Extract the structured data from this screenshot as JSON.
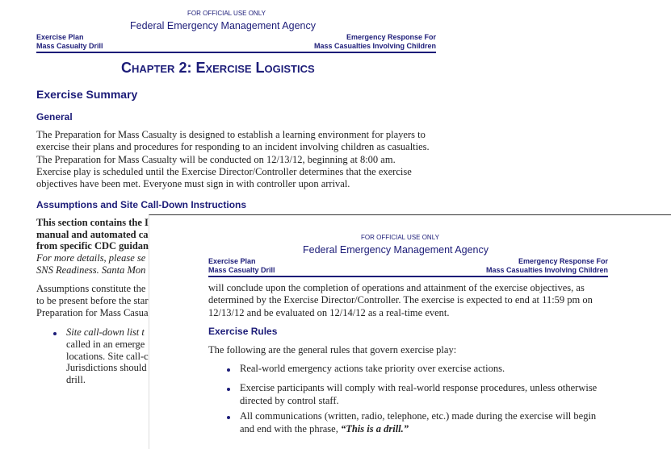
{
  "page1": {
    "official": "FOR OFFICIAL USE ONLY",
    "agency": "Federal Emergency Management Agency",
    "header_left": [
      "Exercise Plan",
      "Mass Casualty Drill"
    ],
    "header_right": [
      "Emergency Response For",
      "Mass Casualties Involving Children"
    ],
    "chapter_title": "Chapter 2: Exercise Logistics",
    "section_title": "Exercise Summary",
    "general_heading": "General",
    "general_lines": [
      "The Preparation for Mass Casualty is designed to establish a learning environment for players to",
      "exercise their plans and procedures for responding to an incident involving children as casualties.",
      "The Preparation for Mass Casualty will be conducted on 12/13/12, beginning at 8:00 am.",
      "Exercise play is scheduled until the Exercise Director/Controller determines that the exercise",
      "objectives have been met. Everyone must sign in with controller upon arrival."
    ],
    "assumptions_heading": "Assumptions and Site Call-Down Instructions",
    "bold_lines": [
      "This section contains the I",
      "manual and automated ca",
      "from specific CDC guidan"
    ],
    "italic_lines": [
      "For more details, please se",
      "SNS Readiness.  Santa Mon"
    ],
    "para_lines": [
      "Assumptions constitute the",
      "to be present before the star",
      "Preparation for Mass Casua"
    ],
    "bullet_lines": [
      "Site call-down list t",
      "called in an emerge",
      "locations. Site call-c",
      "Jurisdictions should",
      "drill."
    ]
  },
  "page2": {
    "official": "FOR OFFICIAL USE ONLY",
    "agency": "Federal Emergency Management Agency",
    "header_left": [
      "Exercise Plan",
      "Mass Casualty Drill"
    ],
    "header_right": [
      "Emergency Response For",
      "Mass Casualties Involving Children"
    ],
    "intro_lines": [
      "will conclude upon the completion of operations and attainment of the exercise objectives, as",
      "determined by the Exercise Director/Controller. The exercise is expected to end at 11:59 pm on",
      "12/13/12 and be evaluated on 12/14/12 as a real-time event."
    ],
    "rules_heading": "Exercise Rules",
    "rules_intro": "The following are the general rules that govern exercise play:",
    "rules": [
      {
        "lines": [
          "Real-world emergency actions take priority over exercise actions."
        ]
      },
      {
        "lines": [
          "Exercise participants will comply with real-world response procedures, unless otherwise",
          "directed by control staff."
        ]
      },
      {
        "lines": [
          "All communications (written, radio, telephone, etc.) made during the exercise will begin",
          "and end with the phrase, "
        ],
        "emphasis": "“This is a drill.”"
      }
    ]
  }
}
